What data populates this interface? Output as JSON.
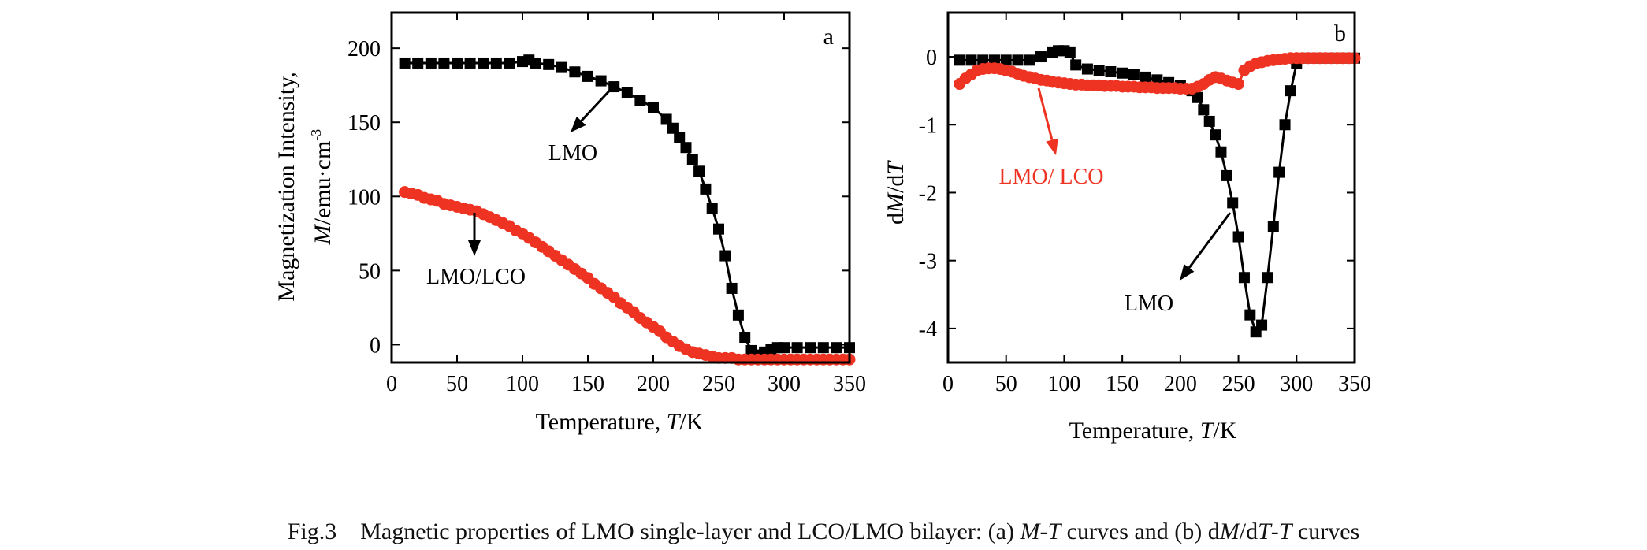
{
  "caption": {
    "label": "Fig.3",
    "p1": "Magnetic properties of LMO single-layer and LCO/LMO bilayer: (a) ",
    "m1": "M",
    "p2": "-",
    "t1": "T",
    "p3": " curves and (b) d",
    "m2": "M",
    "p4": "/d",
    "t2": "T",
    "p5": "-",
    "t3": "T",
    "p6": " curves"
  },
  "chart_data": [
    {
      "type": "scatter",
      "panel_label": "a",
      "xlabel": {
        "prefix": "Temperature, ",
        "var": "T",
        "unit": "/K"
      },
      "ylabel": {
        "line1": "Magnetization Intensity,",
        "var": "M",
        "unit": "/emu·cm",
        "exp": "-3"
      },
      "xlim": [
        0,
        350
      ],
      "ylim": [
        -12,
        224
      ],
      "xticks": [
        0,
        50,
        100,
        150,
        200,
        250,
        300,
        350
      ],
      "yticks": [
        0,
        50,
        100,
        150,
        200
      ],
      "series": [
        {
          "name": "LMO",
          "color": "#000000",
          "marker": "square",
          "x": [
            10,
            20,
            30,
            40,
            50,
            60,
            70,
            80,
            90,
            100,
            105,
            110,
            120,
            130,
            140,
            150,
            160,
            170,
            180,
            190,
            200,
            210,
            215,
            220,
            225,
            230,
            235,
            240,
            245,
            250,
            255,
            260,
            265,
            270,
            275,
            280,
            285,
            290,
            295,
            300,
            310,
            320,
            330,
            340,
            350
          ],
          "y": [
            190,
            190,
            190,
            190,
            190,
            190,
            190,
            190,
            190,
            191,
            192,
            190,
            189,
            187,
            184,
            181,
            178,
            174,
            170,
            165,
            160,
            152,
            146,
            140,
            133,
            125,
            117,
            105,
            92,
            78,
            60,
            38,
            20,
            5,
            -4,
            -7,
            -5,
            -3,
            -2,
            -2,
            -2,
            -2,
            -2,
            -2,
            -2
          ]
        },
        {
          "name": "LMO/LCO",
          "color": "#ee3322",
          "marker": "circle",
          "x": [
            10,
            15,
            20,
            25,
            30,
            35,
            40,
            45,
            50,
            55,
            60,
            65,
            70,
            75,
            80,
            85,
            90,
            95,
            100,
            105,
            110,
            115,
            120,
            125,
            130,
            135,
            140,
            145,
            150,
            155,
            160,
            165,
            170,
            175,
            180,
            185,
            190,
            195,
            200,
            205,
            210,
            215,
            220,
            225,
            230,
            235,
            240,
            245,
            250,
            255,
            260,
            265,
            270,
            275,
            280,
            285,
            290,
            295,
            300,
            305,
            310,
            315,
            320,
            325,
            330,
            335,
            340,
            345,
            350
          ],
          "y": [
            103,
            102,
            101,
            99,
            98,
            97,
            95,
            94,
            93,
            92,
            91,
            90,
            88,
            86,
            84,
            82,
            80,
            77,
            75,
            72,
            69,
            66,
            63,
            60,
            57,
            54,
            51,
            48,
            45,
            41,
            38,
            35,
            32,
            28,
            25,
            22,
            18,
            15,
            12,
            9,
            5,
            2,
            -1,
            -3,
            -5,
            -6,
            -7,
            -8,
            -9,
            -9,
            -9,
            -10,
            -10,
            -10,
            -10,
            -10,
            -10,
            -10,
            -10,
            -10,
            -10,
            -10,
            -10,
            -10,
            -10,
            -10,
            -10,
            -10,
            -10
          ]
        }
      ],
      "annotations": [
        {
          "text": "LMO",
          "color": "#000000"
        },
        {
          "text": "LMO/LCO",
          "color": "#000000"
        }
      ]
    },
    {
      "type": "scatter",
      "panel_label": "b",
      "xlabel": {
        "prefix": "Temperature, ",
        "var": "T",
        "unit": "/K"
      },
      "ylabel": {
        "d1": "d",
        "var1": "M",
        "slash": "/d",
        "var2": "T"
      },
      "xlim": [
        0,
        350
      ],
      "ylim": [
        -4.5,
        0.65
      ],
      "xticks": [
        0,
        50,
        100,
        150,
        200,
        250,
        300,
        350
      ],
      "yticks": [
        0,
        -1,
        -2,
        -3,
        -4
      ],
      "series": [
        {
          "name": "LMO",
          "color": "#000000",
          "marker": "square",
          "x": [
            10,
            20,
            30,
            40,
            50,
            60,
            70,
            80,
            90,
            95,
            100,
            105,
            110,
            120,
            130,
            140,
            150,
            160,
            170,
            180,
            190,
            200,
            210,
            215,
            220,
            225,
            230,
            235,
            240,
            245,
            250,
            255,
            260,
            265,
            270,
            275,
            280,
            285,
            290,
            295,
            300,
            310,
            320,
            330,
            340,
            350
          ],
          "y": [
            -0.05,
            -0.05,
            -0.05,
            -0.05,
            -0.05,
            -0.05,
            -0.05,
            0.0,
            0.06,
            0.09,
            0.09,
            0.06,
            -0.12,
            -0.18,
            -0.2,
            -0.22,
            -0.24,
            -0.26,
            -0.3,
            -0.34,
            -0.38,
            -0.42,
            -0.5,
            -0.6,
            -0.78,
            -0.95,
            -1.15,
            -1.4,
            -1.75,
            -2.15,
            -2.65,
            -3.25,
            -3.8,
            -4.05,
            -3.95,
            -3.25,
            -2.5,
            -1.7,
            -1.0,
            -0.5,
            -0.1,
            -0.02,
            -0.02,
            -0.02,
            -0.02,
            -0.02
          ]
        },
        {
          "name": "LMO/LCO",
          "color": "#ee3322",
          "marker": "circle",
          "x": [
            10,
            15,
            20,
            25,
            30,
            35,
            40,
            45,
            50,
            55,
            60,
            65,
            70,
            75,
            80,
            85,
            90,
            95,
            100,
            105,
            110,
            115,
            120,
            125,
            130,
            135,
            140,
            145,
            150,
            155,
            160,
            165,
            170,
            175,
            180,
            185,
            190,
            195,
            200,
            205,
            210,
            215,
            220,
            225,
            230,
            235,
            240,
            245,
            250,
            255,
            260,
            265,
            270,
            275,
            280,
            285,
            290,
            295,
            300,
            305,
            310,
            315,
            320,
            325,
            330,
            335,
            340,
            345,
            350
          ],
          "y": [
            -0.4,
            -0.32,
            -0.26,
            -0.2,
            -0.18,
            -0.17,
            -0.17,
            -0.18,
            -0.2,
            -0.22,
            -0.25,
            -0.28,
            -0.3,
            -0.32,
            -0.34,
            -0.35,
            -0.37,
            -0.38,
            -0.39,
            -0.4,
            -0.41,
            -0.41,
            -0.42,
            -0.42,
            -0.42,
            -0.43,
            -0.43,
            -0.43,
            -0.44,
            -0.44,
            -0.44,
            -0.45,
            -0.45,
            -0.45,
            -0.46,
            -0.46,
            -0.46,
            -0.46,
            -0.47,
            -0.47,
            -0.47,
            -0.44,
            -0.4,
            -0.34,
            -0.3,
            -0.32,
            -0.35,
            -0.38,
            -0.4,
            -0.2,
            -0.14,
            -0.1,
            -0.08,
            -0.06,
            -0.05,
            -0.04,
            -0.03,
            -0.02,
            -0.02,
            -0.02,
            -0.02,
            -0.02,
            -0.02,
            -0.02,
            -0.02,
            -0.02,
            -0.02,
            -0.02,
            -0.02
          ]
        }
      ],
      "annotations": [
        {
          "text": "LMO/ LCO",
          "color": "#ee3322"
        },
        {
          "text": "LMO",
          "color": "#000000"
        }
      ]
    }
  ]
}
